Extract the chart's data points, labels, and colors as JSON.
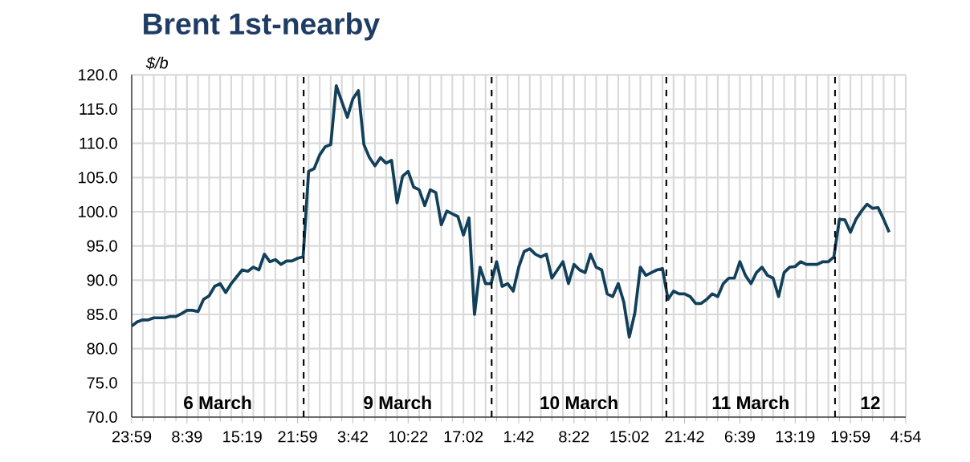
{
  "chart_data": {
    "type": "line",
    "title": "Brent 1st-nearby",
    "ylabel": "$/b",
    "color": "#12405a",
    "grid": true,
    "ylim": [
      70,
      120
    ],
    "yticks": [
      {
        "value": 70,
        "label": "70.0"
      },
      {
        "value": 75,
        "label": "75.0"
      },
      {
        "value": 80,
        "label": "80.0"
      },
      {
        "value": 85,
        "label": "85.0"
      },
      {
        "value": 90,
        "label": "90.0"
      },
      {
        "value": 95,
        "label": "95.0"
      },
      {
        "value": 100,
        "label": "100.0"
      },
      {
        "value": 105,
        "label": "105.0"
      },
      {
        "value": 110,
        "label": "110.0"
      },
      {
        "value": 115,
        "label": "115.0"
      },
      {
        "value": 120,
        "label": "120.0"
      }
    ],
    "categories": [
      "23:59",
      null,
      null,
      null,
      null,
      null,
      null,
      null,
      null,
      null,
      "8:39",
      null,
      null,
      null,
      null,
      null,
      null,
      null,
      null,
      null,
      "15:19",
      null,
      null,
      null,
      null,
      null,
      null,
      null,
      null,
      null,
      "21:59",
      null,
      null,
      null,
      null,
      null,
      null,
      null,
      null,
      null,
      "3:42",
      null,
      null,
      null,
      null,
      null,
      null,
      null,
      null,
      null,
      "10:22",
      null,
      null,
      null,
      null,
      null,
      null,
      null,
      null,
      null,
      "17:02",
      null,
      null,
      null,
      null,
      null,
      null,
      null,
      null,
      null,
      "1:42",
      null,
      null,
      null,
      null,
      null,
      null,
      null,
      null,
      null,
      "8:22",
      null,
      null,
      null,
      null,
      null,
      null,
      null,
      null,
      null,
      "15:02",
      null,
      null,
      null,
      null,
      null,
      null,
      null,
      null,
      null,
      "21:42",
      null,
      null,
      null,
      null,
      null,
      null,
      null,
      null,
      null,
      "6:39",
      null,
      null,
      null,
      null,
      null,
      null,
      null,
      null,
      null,
      "13:19",
      null,
      null,
      null,
      null,
      null,
      null,
      null,
      null,
      null,
      "19:59",
      null,
      null,
      null,
      null,
      null,
      null,
      null,
      null,
      null,
      "4:54"
    ],
    "values": [
      83.3,
      83.9,
      84.2,
      84.2,
      84.5,
      84.5,
      84.5,
      84.7,
      84.7,
      85.1,
      85.6,
      85.6,
      85.4,
      87.2,
      87.7,
      89.1,
      89.5,
      88.2,
      89.5,
      90.5,
      91.5,
      91.3,
      91.9,
      91.5,
      93.8,
      92.7,
      93.0,
      92.3,
      92.8,
      92.8,
      93.2,
      93.4,
      105.9,
      106.3,
      108.3,
      109.5,
      109.8,
      118.4,
      116.1,
      113.8,
      116.5,
      117.7,
      109.8,
      107.9,
      106.7,
      107.9,
      107.1,
      107.5,
      101.3,
      105.2,
      105.9,
      103.6,
      103.2,
      100.9,
      103.2,
      102.8,
      98.1,
      100.1,
      99.7,
      99.3,
      96.6,
      99.1,
      85.0,
      91.9,
      89.5,
      89.5,
      92.7,
      89.1,
      89.5,
      88.4,
      91.9,
      94.2,
      94.6,
      93.8,
      93.4,
      93.8,
      90.3,
      91.5,
      92.7,
      89.5,
      92.3,
      91.5,
      91.1,
      93.8,
      91.9,
      91.5,
      88.0,
      87.6,
      89.5,
      86.8,
      81.7,
      85.2,
      91.9,
      90.7,
      91.1,
      91.5,
      91.7,
      87.2,
      88.4,
      88.0,
      88.0,
      87.6,
      86.6,
      86.6,
      87.2,
      88.0,
      87.6,
      89.5,
      90.3,
      90.3,
      92.7,
      90.7,
      89.5,
      91.1,
      91.9,
      90.7,
      90.3,
      87.6,
      91.1,
      91.9,
      92.0,
      92.7,
      92.3,
      92.3,
      92.3,
      92.7,
      92.7,
      93.4,
      98.9,
      98.8,
      97.0,
      98.9,
      100.1,
      101.1,
      100.5,
      100.6,
      98.9,
      97.0,
      null,
      null,
      null
    ],
    "annotations": [
      "6 March",
      "9 March",
      "10 March",
      "11 March",
      "12"
    ]
  }
}
